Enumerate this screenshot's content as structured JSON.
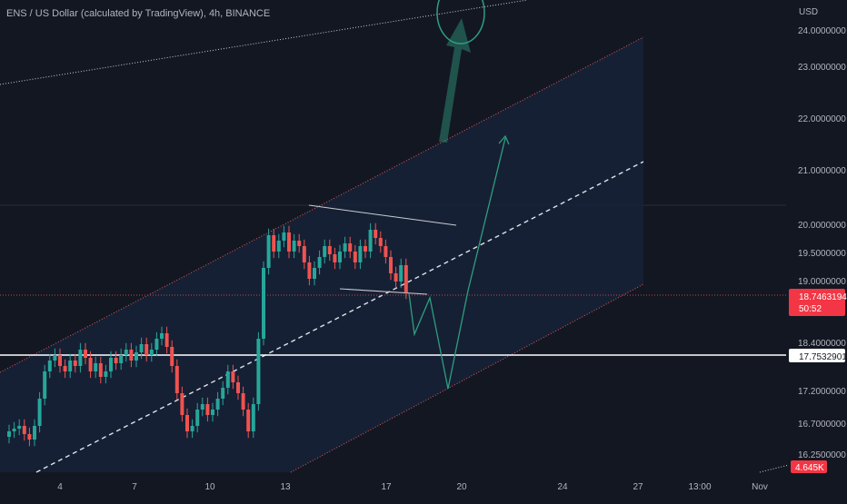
{
  "header": {
    "symbol_title": "ENS / US Dollar (calculated by TradingView), 4h, BINANCE",
    "axis_currency": "USD"
  },
  "colors": {
    "background": "#131722",
    "up": "#26a69a",
    "down": "#ef5350",
    "channel_fill": "#172237",
    "channel_edge": "#e05a5a",
    "projection": "#2e9e7f",
    "grid": "#2a2e39",
    "axis_text": "#b2b5be",
    "white_line": "#ffffff",
    "price_badge": "#f23645"
  },
  "chart_data": {
    "type": "candlestick",
    "title": "ENS / US Dollar (calculated by TradingView), 4h, BINANCE",
    "timeframe": "4h",
    "exchange": "BINANCE",
    "y_axis": {
      "unit": "USD",
      "range": [
        15.9,
        24.4
      ],
      "ticks": [
        "16.2500000",
        "16.7000000",
        "17.2000000",
        "18.4000000",
        "19.0000000",
        "19.5000000",
        "20.0000000",
        "21.0000000",
        "22.0000000",
        "23.0000000",
        "24.0000000"
      ]
    },
    "x_axis": {
      "tick_labels": [
        "4",
        "7",
        "10",
        "13",
        "17",
        "20",
        "24",
        "27",
        "13:00",
        "Nov"
      ]
    },
    "last_price": "18.7463194",
    "countdown": "50:52",
    "horizontal_level": "17.7532901",
    "volume_badge": "4.645K",
    "candles_close_approx": [
      16.2,
      16.25,
      16.3,
      16.15,
      16.05,
      16.3,
      16.8,
      17.3,
      17.5,
      17.6,
      17.4,
      17.3,
      17.5,
      17.4,
      17.7,
      17.55,
      17.3,
      17.45,
      17.2,
      17.3,
      17.55,
      17.45,
      17.6,
      17.7,
      17.5,
      17.65,
      17.8,
      17.6,
      17.7,
      17.9,
      18.0,
      17.75,
      17.4,
      16.9,
      16.5,
      16.2,
      16.3,
      16.6,
      16.7,
      16.5,
      16.6,
      16.8,
      17.0,
      17.3,
      17.1,
      16.9,
      16.6,
      16.2,
      16.7,
      17.9,
      19.2,
      19.8,
      19.5,
      19.7,
      19.85,
      19.5,
      19.7,
      19.6,
      19.3,
      19.0,
      19.2,
      19.4,
      19.6,
      19.45,
      19.3,
      19.5,
      19.65,
      19.5,
      19.3,
      19.6,
      19.5,
      19.9,
      19.75,
      19.6,
      19.4,
      19.1,
      18.95,
      19.25,
      18.75
    ],
    "annotations": {
      "ascending_channel": "parallel channel with dashed median",
      "projection_path": "down to ~17.25 then up to ~22.0",
      "breakout_arrow": "up toward ~24.2"
    }
  }
}
